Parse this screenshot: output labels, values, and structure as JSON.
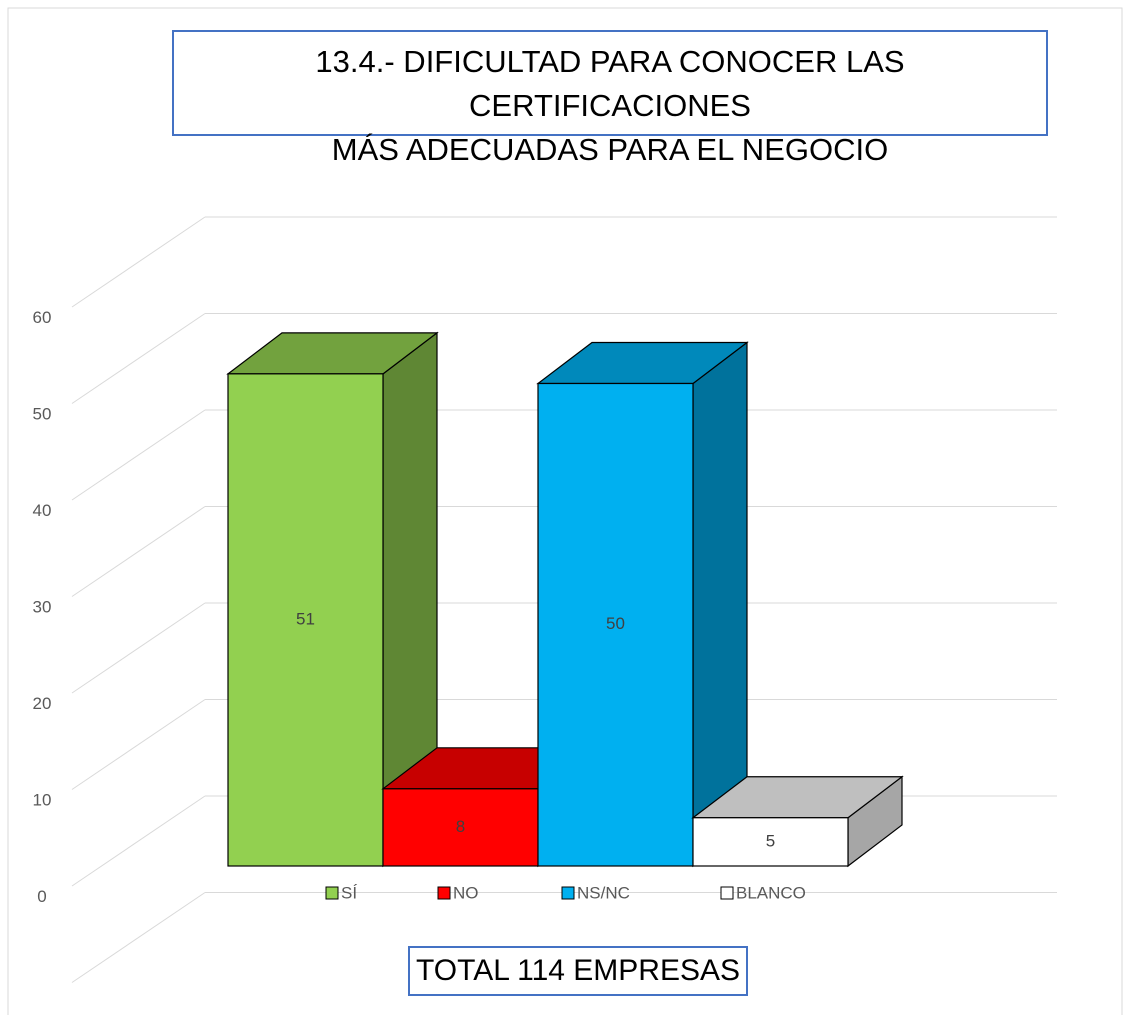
{
  "chart_data": {
    "type": "bar",
    "title": "13.4.- DIFICULTAD PARA CONOCER LAS CERTIFICACIONES\nMÁS ADECUADAS PARA EL NEGOCIO",
    "annotation": "TOTAL 114 EMPRESAS",
    "series": [
      {
        "name": "SÍ",
        "color": "#92d050",
        "values": [
          51
        ]
      },
      {
        "name": "NO",
        "color": "#ff0000",
        "values": [
          8
        ]
      },
      {
        "name": "NS/NC",
        "color": "#00b0f0",
        "values": [
          50
        ]
      },
      {
        "name": "BLANCO",
        "color": "#ffffff",
        "values": [
          5
        ]
      }
    ],
    "ylim": [
      0,
      70
    ],
    "yticks": [
      0,
      10,
      20,
      30,
      40,
      50,
      60
    ],
    "grid": true,
    "legend": "bottom"
  }
}
